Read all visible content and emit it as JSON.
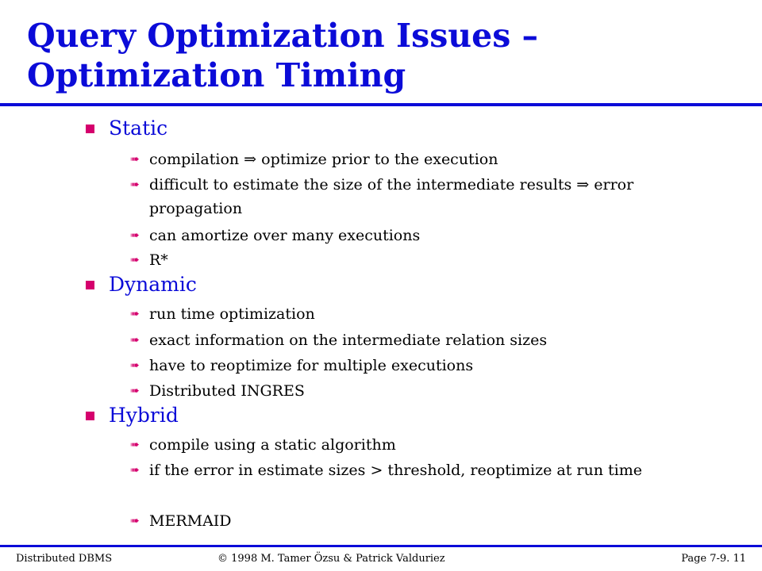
{
  "title": "Query Optimization Issues – Optimization Timing",
  "sections": [
    {
      "label": "Static",
      "items": [
        "compilation ⇒ optimize prior to the execution",
        "difficult to estimate the size of the intermediate results ⇒ error propagation",
        "can amortize over many executions",
        "R*"
      ]
    },
    {
      "label": "Dynamic",
      "items": [
        "run time optimization",
        "exact information on the intermediate relation sizes",
        "have to reoptimize for multiple executions",
        "Distributed INGRES"
      ]
    },
    {
      "label": "Hybrid",
      "items": [
        "compile using a static algorithm",
        "if the error in estimate sizes > threshold, reoptimize at run time",
        "MERMAID"
      ]
    }
  ],
  "footer": {
    "left": "Distributed DBMS",
    "center": "© 1998 M. Tamer Özsu & Patrick Valduriez",
    "right": "Page 7-9. 11"
  },
  "colors": {
    "accent": "#0b0bd8",
    "bullet": "#d5006d"
  },
  "icons": {
    "section_bullet": "square-bullet-icon",
    "item_bullet": "arrow-bullet-icon"
  }
}
